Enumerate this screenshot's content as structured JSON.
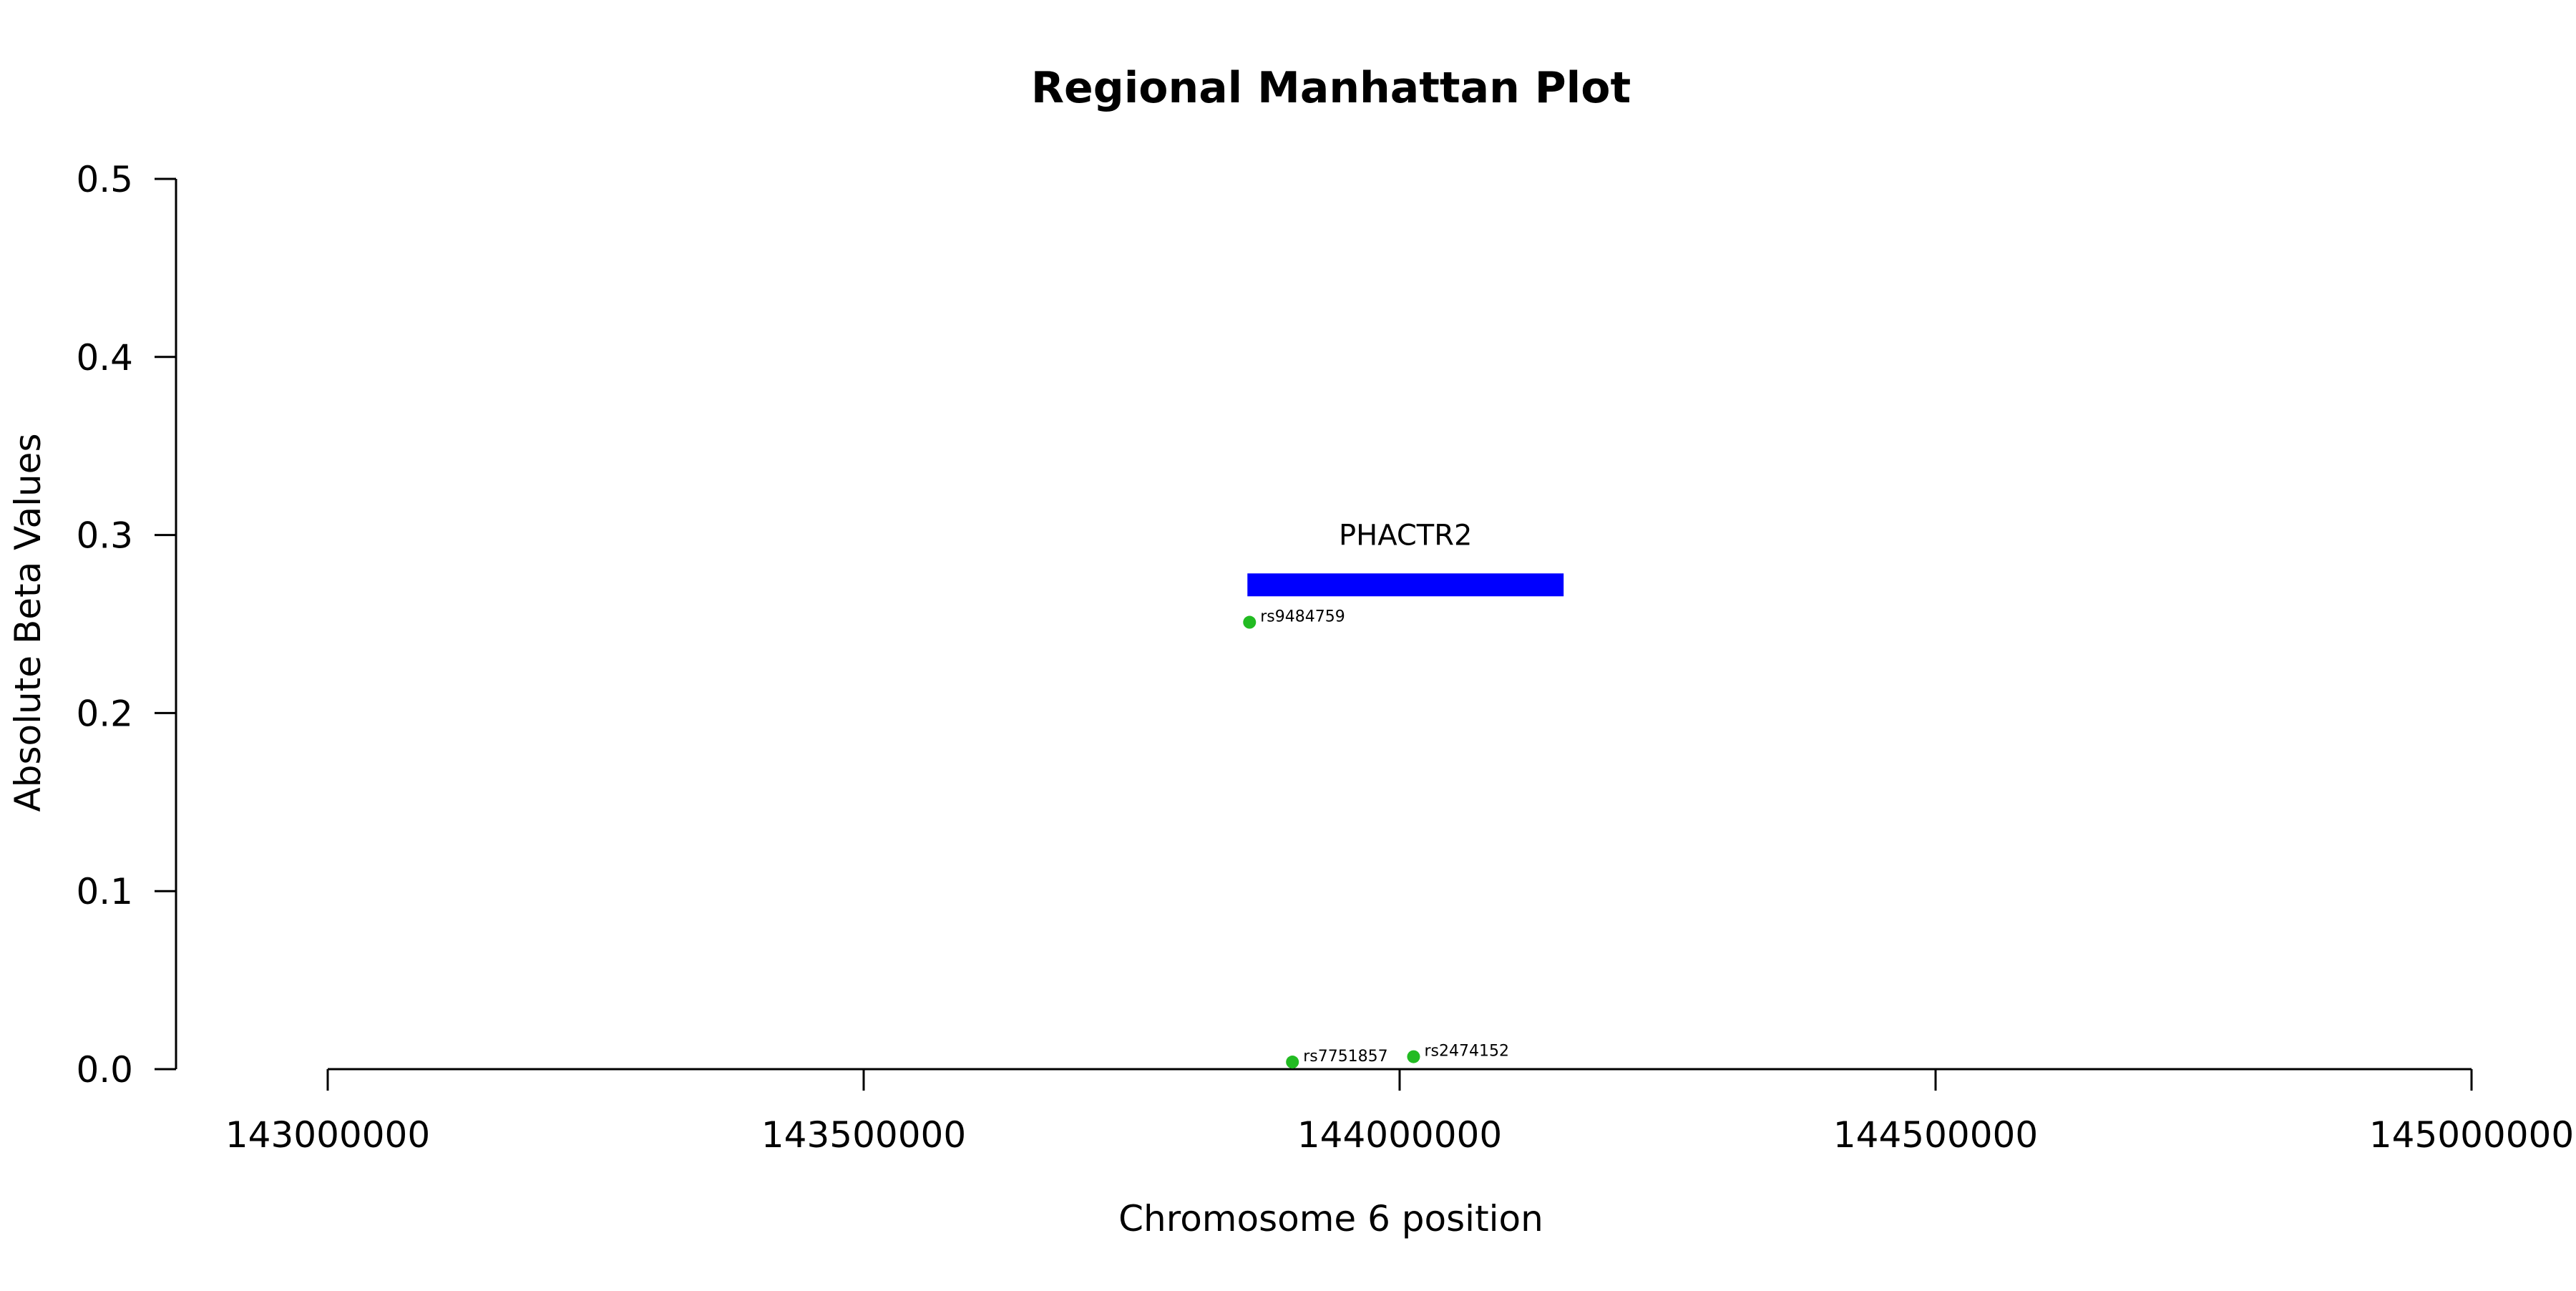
{
  "chart_data": {
    "type": "scatter",
    "title": "Regional Manhattan Plot",
    "xlabel": "Chromosome 6 position",
    "ylabel": "Absolute Beta Values",
    "xlim": [
      143000000,
      145000000
    ],
    "ylim": [
      0,
      0.5
    ],
    "x_ticks": [
      143000000,
      143500000,
      144000000,
      144500000,
      145000000
    ],
    "x_tick_labels": [
      "143000000",
      "143500000",
      "144000000",
      "144500000",
      "145000000"
    ],
    "y_ticks": [
      0,
      0.1,
      0.2,
      0.3,
      0.4,
      0.5
    ],
    "y_tick_labels": [
      "0.0",
      "0.1",
      "0.2",
      "0.3",
      "0.4",
      "0.5"
    ],
    "grid": false,
    "point_color": "#22bb22",
    "points": [
      {
        "label": "rs9484759",
        "x": 143860000,
        "y": 0.251
      },
      {
        "label": "rs7751857",
        "x": 143900000,
        "y": 0.004
      },
      {
        "label": "rs2474152",
        "x": 144013000,
        "y": 0.007
      }
    ],
    "genes": [
      {
        "name": "PHACTR2",
        "start": 143858000,
        "end": 144153000,
        "y": 0.272,
        "color": "#0000ff"
      }
    ]
  }
}
